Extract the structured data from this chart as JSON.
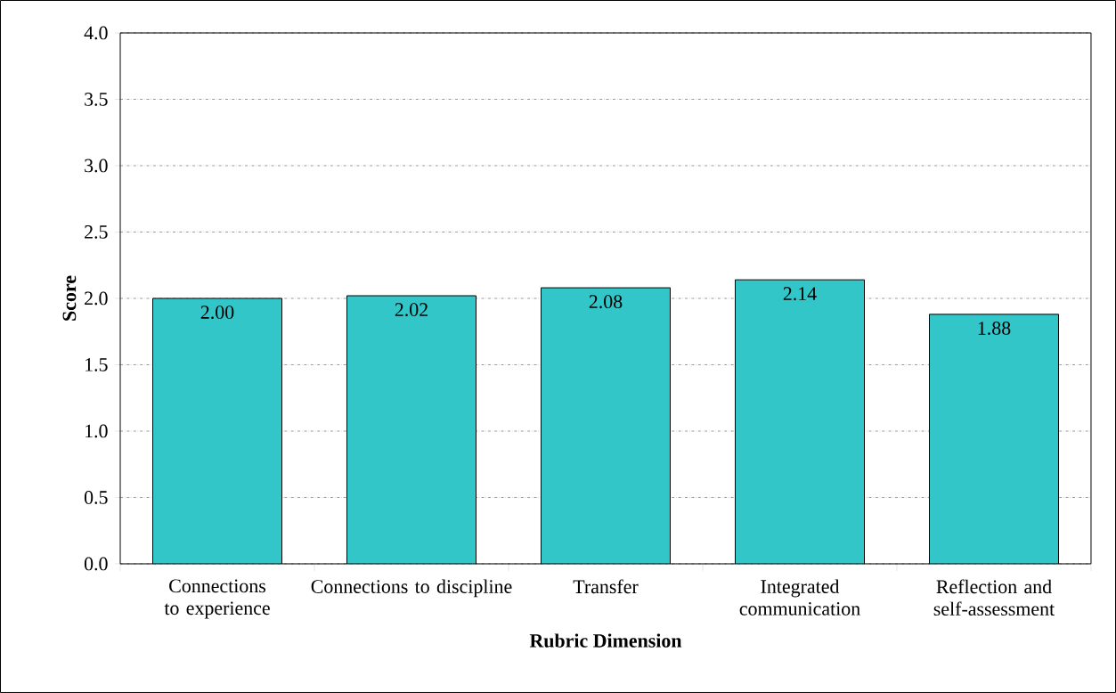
{
  "chart_data": {
    "type": "bar",
    "xlabel": "Rubric Dimension",
    "ylabel": "Score",
    "categories": [
      "Connections to experience",
      "Connections to discipline",
      "Transfer",
      "Integrated communication",
      "Reflection and self-assessment"
    ],
    "values": [
      2.0,
      2.02,
      2.08,
      2.14,
      1.88
    ],
    "value_labels": [
      "2.00",
      "2.02",
      "2.08",
      "2.14",
      "1.88"
    ],
    "color": "#33c6c9",
    "ylim": [
      0,
      4
    ],
    "yticks": [
      {
        "value": 0,
        "label": "0.0"
      },
      {
        "value": 0.5,
        "label": "0.5"
      },
      {
        "value": 1,
        "label": "1.0"
      },
      {
        "value": 1.5,
        "label": "1.5"
      },
      {
        "value": 2,
        "label": "2.0"
      },
      {
        "value": 2.5,
        "label": "2.5"
      },
      {
        "value": 3,
        "label": "3.0"
      },
      {
        "value": 3.5,
        "label": "3.5"
      },
      {
        "value": 4,
        "label": "4.0"
      }
    ],
    "grid": "y"
  }
}
